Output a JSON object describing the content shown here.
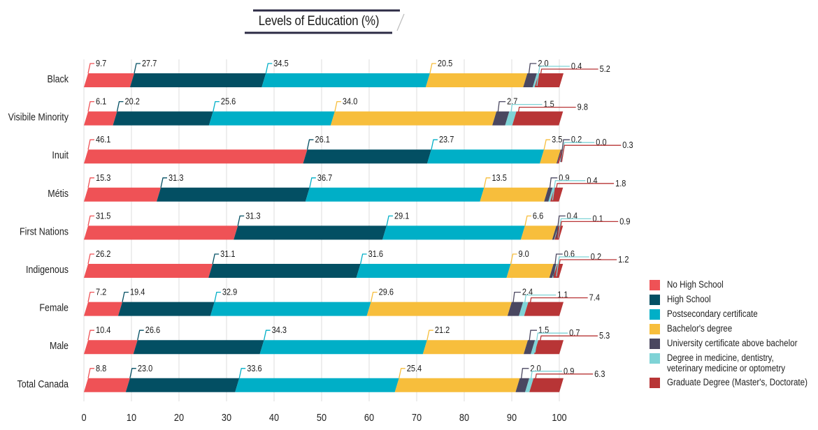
{
  "chart_data": {
    "type": "bar",
    "orientation": "horizontal",
    "stacked": true,
    "title": "Levels of Education (%)",
    "xlabel": "",
    "ylabel": "",
    "xlim": [
      0,
      100
    ],
    "x_ticks": [
      "0",
      "10",
      "20",
      "30",
      "40",
      "50",
      "60",
      "70",
      "80",
      "90",
      "100"
    ],
    "grid": "vertical",
    "legend_position": "bottom-right",
    "categories": [
      "Black",
      "Visibile Minority",
      "Inuit",
      "Métis",
      "First Nations",
      "Indigenous",
      "Female",
      "Male",
      "Total Canada"
    ],
    "series": [
      {
        "name": "No High School",
        "color": "#ef5256",
        "values": [
          9.7,
          6.1,
          46.1,
          15.3,
          31.5,
          26.2,
          7.2,
          10.4,
          8.8
        ],
        "labels": [
          "9.7",
          "6.1",
          "46.1",
          "15.3",
          "31.5",
          "26.2",
          "7.2",
          "10.4",
          "8.8"
        ]
      },
      {
        "name": "High School",
        "color": "#034f63",
        "values": [
          27.7,
          20.2,
          26.1,
          31.3,
          31.3,
          31.1,
          19.4,
          26.6,
          23.0
        ],
        "labels": [
          "27.7",
          "20.2",
          "26.1",
          "31.3",
          "31.3",
          "31.1",
          "19.4",
          "26.6",
          "23.0"
        ]
      },
      {
        "name": "Postsecondary certificate",
        "color": "#00afc7",
        "values": [
          34.5,
          25.6,
          23.7,
          36.7,
          29.1,
          31.6,
          32.9,
          34.3,
          33.6
        ],
        "labels": [
          "34.5",
          "25.6",
          "23.7",
          "36.7",
          "29.1",
          "31.6",
          "32.9",
          "34.3",
          "33.6"
        ]
      },
      {
        "name": "Bachelor's degree",
        "color": "#f7be3c",
        "values": [
          20.5,
          34.0,
          3.5,
          13.5,
          6.6,
          9.0,
          29.6,
          21.2,
          25.4
        ],
        "labels": [
          "20.5",
          "34.0",
          "3.5",
          "13.5",
          "6.6",
          "9.0",
          "29.6",
          "21.2",
          "25.4"
        ]
      },
      {
        "name": "University certificate above bachelor",
        "color": "#4a4760",
        "values": [
          2.0,
          2.7,
          0.2,
          0.9,
          0.4,
          0.6,
          2.4,
          1.5,
          2.0
        ],
        "labels": [
          "2.0",
          "2.7",
          "0.2",
          "0.9",
          "0.4",
          "0.6",
          "2.4",
          "1.5",
          "2.0"
        ]
      },
      {
        "name": "Degree in medicine, dentistry,\nveterinary medicine or optometry",
        "color": "#7fd3d6",
        "values": [
          0.4,
          1.5,
          0.0,
          0.4,
          0.1,
          0.2,
          1.1,
          0.7,
          0.9
        ],
        "labels": [
          "0.4",
          "1.5",
          "0.0",
          "0.4",
          "0.1",
          "0.2",
          "1.1",
          "0.7",
          "0.9"
        ]
      },
      {
        "name": "Graduate Degree (Master's, Doctorate)",
        "color": "#b83536",
        "values": [
          5.2,
          9.8,
          0.3,
          1.8,
          0.9,
          1.2,
          7.4,
          5.3,
          6.3
        ],
        "labels": [
          "5.2",
          "9.8",
          "0.3",
          "1.8",
          "0.9",
          "1.2",
          "7.4",
          "5.3",
          "6.3"
        ]
      }
    ]
  }
}
